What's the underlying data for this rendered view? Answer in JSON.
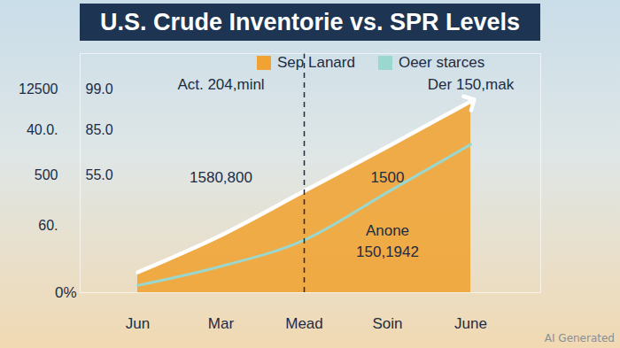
{
  "chart_data": {
    "type": "line",
    "title": "U.S. Crude Inventorie vs. SPR Levels",
    "categories": [
      "Jun",
      "Mar",
      "Mead",
      "Soin",
      "June"
    ],
    "series": [
      {
        "name": "Sep Lanard",
        "type": "area",
        "color": "#f0a332",
        "values": [
          8.5,
          24,
          42.5,
          61,
          80
        ]
      },
      {
        "name": "Oeer starces",
        "type": "line",
        "color": "#9ad8cf",
        "values": [
          3,
          11,
          22,
          42,
          62
        ]
      }
    ],
    "ylim": [
      0,
      100
    ],
    "yticks": [
      {
        "value": 0,
        "label": "0%"
      }
    ],
    "grid": false,
    "legend": "top",
    "vlines": [
      "Mead"
    ],
    "left_labels": [
      {
        "text": "12500",
        "y": 85
      },
      {
        "text": "40.0.",
        "y": 68
      },
      {
        "text": "500",
        "y": 49
      },
      {
        "text": "60.",
        "y": 28
      }
    ],
    "inner_labels": [
      {
        "text": "99.0",
        "y": 85
      },
      {
        "text": "85.0",
        "y": 68
      },
      {
        "text": "55.0",
        "y": 49
      }
    ],
    "annotations": [
      {
        "text": "Act. 204,minl",
        "x": "Mar",
        "y": 87
      },
      {
        "text": "Der 150,mak",
        "x": "June",
        "y": 87
      },
      {
        "text": "1580,800",
        "x": "Mar",
        "y": 48
      },
      {
        "text": "1500",
        "x": "Soin",
        "y": 48
      },
      {
        "text": "Anone",
        "x": "Soin",
        "y": 26
      },
      {
        "text": "150,1942",
        "x": "Soin",
        "y": 17
      }
    ],
    "caption": "AI Generated"
  }
}
